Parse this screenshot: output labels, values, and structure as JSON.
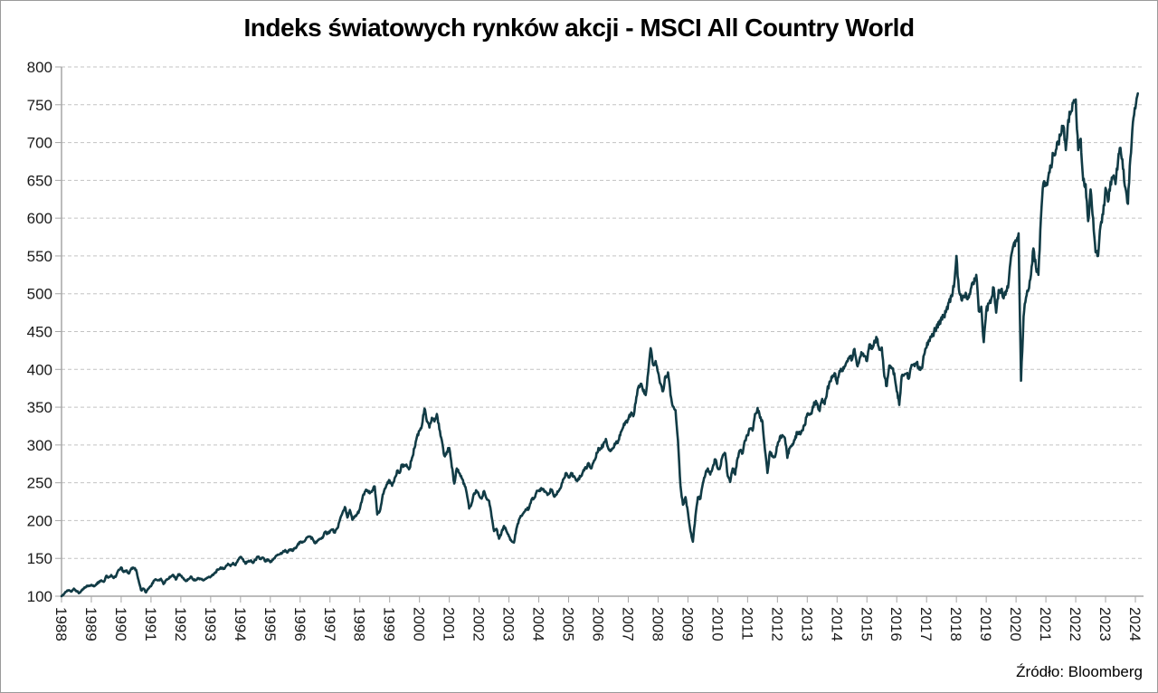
{
  "title": "Indeks światowych rynków akcji - MSCI All Country World",
  "source": "Źródło: Bloomberg",
  "chart_data": {
    "type": "line",
    "title": "Indeks światowych rynków akcji - MSCI All Country World",
    "series_name": "MSCI All Country World",
    "xlabel": "",
    "ylabel": "",
    "ylim": [
      100,
      800
    ],
    "y_ticks": [
      100,
      150,
      200,
      250,
      300,
      350,
      400,
      450,
      500,
      550,
      600,
      650,
      700,
      750,
      800
    ],
    "x_ticks": [
      1988,
      1989,
      1990,
      1991,
      1992,
      1993,
      1994,
      1995,
      1996,
      1997,
      1998,
      1999,
      2000,
      2001,
      2002,
      2003,
      2004,
      2005,
      2006,
      2007,
      2008,
      2009,
      2010,
      2011,
      2012,
      2013,
      2014,
      2015,
      2016,
      2017,
      2018,
      2019,
      2020,
      2021,
      2022,
      2023,
      2024
    ],
    "grid": true,
    "legend": false,
    "line_color": "#113b45",
    "grid_color": "#c3c3c3",
    "axis_color": "#a6a6a6",
    "start_year": 1988,
    "frequency": "monthly",
    "values": [
      100,
      103,
      106,
      108,
      106,
      110,
      107,
      104,
      107,
      110,
      113,
      114,
      115,
      113,
      116,
      119,
      121,
      119,
      127,
      125,
      128,
      124,
      127,
      135,
      138,
      132,
      134,
      130,
      136,
      137,
      135,
      121,
      108,
      110,
      105,
      110,
      113,
      120,
      122,
      121,
      123,
      116,
      121,
      123,
      126,
      128,
      122,
      129,
      127,
      124,
      120,
      122,
      126,
      122,
      121,
      124,
      123,
      121,
      123,
      125,
      126,
      128,
      132,
      135,
      138,
      136,
      139,
      143,
      140,
      144,
      141,
      148,
      152,
      149,
      143,
      146,
      147,
      144,
      148,
      152,
      149,
      151,
      146,
      148,
      145,
      148,
      152,
      155,
      156,
      158,
      161,
      158,
      162,
      160,
      164,
      168,
      171,
      172,
      174,
      178,
      179,
      176,
      170,
      173,
      176,
      177,
      185,
      183,
      186,
      188,
      184,
      190,
      201,
      210,
      218,
      204,
      214,
      201,
      205,
      209,
      215,
      229,
      238,
      240,
      236,
      240,
      245,
      208,
      212,
      230,
      242,
      248,
      253,
      246,
      256,
      266,
      263,
      274,
      273,
      272,
      269,
      283,
      296,
      311,
      319,
      326,
      348,
      331,
      323,
      336,
      331,
      341,
      321,
      306,
      286,
      291,
      296,
      271,
      249,
      269,
      263,
      256,
      249,
      236,
      216,
      223,
      236,
      239,
      233,
      229,
      239,
      229,
      226,
      206,
      186,
      189,
      176,
      184,
      193,
      186,
      179,
      173,
      171,
      189,
      201,
      206,
      211,
      215,
      216,
      227,
      229,
      237,
      239,
      243,
      241,
      237,
      235,
      241,
      233,
      234,
      239,
      245,
      255,
      263,
      257,
      263,
      259,
      253,
      256,
      259,
      267,
      269,
      276,
      269,
      277,
      284,
      296,
      295,
      301,
      308,
      295,
      293,
      296,
      303,
      306,
      317,
      324,
      331,
      334,
      341,
      338,
      356,
      376,
      381,
      371,
      366,
      396,
      428,
      406,
      411,
      396,
      381,
      371,
      391,
      396,
      366,
      351,
      346,
      306,
      246,
      221,
      231,
      211,
      186,
      172,
      206,
      231,
      229,
      249,
      261,
      269,
      261,
      271,
      281,
      269,
      271,
      286,
      289,
      259,
      251,
      269,
      261,
      283,
      293,
      289,
      306,
      313,
      321,
      319,
      341,
      349,
      336,
      331,
      293,
      263,
      291,
      286,
      284,
      299,
      311,
      313,
      309,
      283,
      296,
      301,
      307,
      317,
      315,
      319,
      326,
      341,
      340,
      346,
      356,
      355,
      345,
      361,
      354,
      371,
      384,
      389,
      395,
      381,
      398,
      399,
      404,
      411,
      417,
      413,
      427,
      406,
      413,
      421,
      418,
      411,
      433,
      427,
      438,
      441,
      426,
      429,
      391,
      378,
      405,
      402,
      395,
      371,
      353,
      391,
      393,
      394,
      389,
      406,
      407,
      409,
      400,
      401,
      419,
      429,
      439,
      443,
      449,
      456,
      459,
      469,
      471,
      479,
      489,
      498,
      509,
      550,
      506,
      492,
      497,
      498,
      495,
      509,
      513,
      525,
      477,
      483,
      436,
      477,
      487,
      493,
      508,
      475,
      505,
      506,
      494,
      504,
      515,
      550,
      565,
      571,
      580,
      385,
      470,
      495,
      505,
      525,
      560,
      535,
      525,
      600,
      646,
      643,
      655,
      668,
      685,
      690,
      700,
      710,
      722,
      690,
      730,
      740,
      752,
      757,
      690,
      705,
      650,
      645,
      596,
      638,
      600,
      555,
      550,
      590,
      605,
      640,
      622,
      648,
      655,
      645,
      675,
      693,
      665,
      640,
      619,
      680,
      727,
      745,
      765
    ]
  }
}
